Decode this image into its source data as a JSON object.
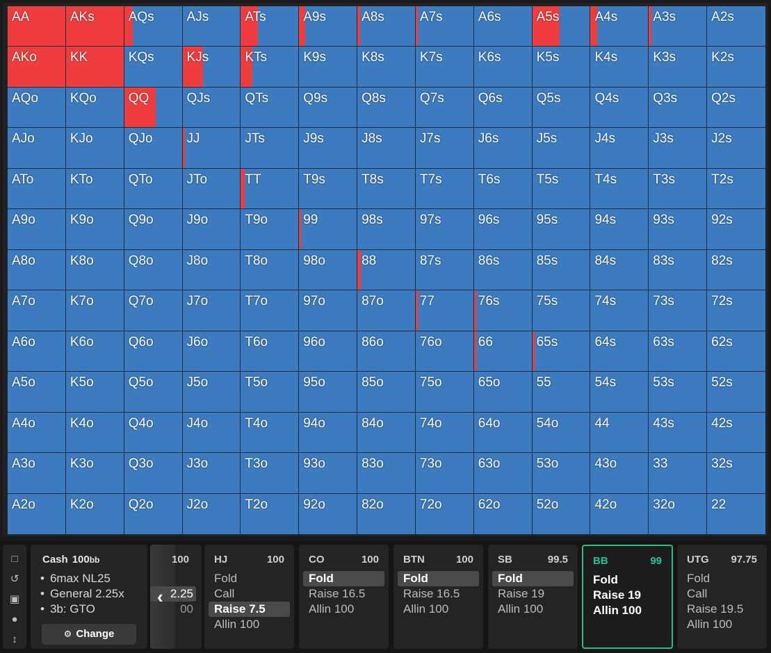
{
  "grid": {
    "rows": [
      [
        "AA",
        "AKs",
        "AQs",
        "AJs",
        "ATs",
        "A9s",
        "A8s",
        "A7s",
        "A6s",
        "A5s",
        "A4s",
        "A3s",
        "A2s"
      ],
      [
        "AKo",
        "KK",
        "KQs",
        "KJs",
        "KTs",
        "K9s",
        "K8s",
        "K7s",
        "K6s",
        "K5s",
        "K4s",
        "K3s",
        "K2s"
      ],
      [
        "AQo",
        "KQo",
        "QQ",
        "QJs",
        "QTs",
        "Q9s",
        "Q8s",
        "Q7s",
        "Q6s",
        "Q5s",
        "Q4s",
        "Q3s",
        "Q2s"
      ],
      [
        "AJo",
        "KJo",
        "QJo",
        "JJ",
        "JTs",
        "J9s",
        "J8s",
        "J7s",
        "J6s",
        "J5s",
        "J4s",
        "J3s",
        "J2s"
      ],
      [
        "ATo",
        "KTo",
        "QTo",
        "JTo",
        "TT",
        "T9s",
        "T8s",
        "T7s",
        "T6s",
        "T5s",
        "T4s",
        "T3s",
        "T2s"
      ],
      [
        "A9o",
        "K9o",
        "Q9o",
        "J9o",
        "T9o",
        "99",
        "98s",
        "97s",
        "96s",
        "95s",
        "94s",
        "93s",
        "92s"
      ],
      [
        "A8o",
        "K8o",
        "Q8o",
        "J8o",
        "T8o",
        "98o",
        "88",
        "87s",
        "86s",
        "85s",
        "84s",
        "83s",
        "82s"
      ],
      [
        "A7o",
        "K7o",
        "Q7o",
        "J7o",
        "T7o",
        "97o",
        "87o",
        "77",
        "76s",
        "75s",
        "74s",
        "73s",
        "72s"
      ],
      [
        "A6o",
        "K6o",
        "Q6o",
        "J6o",
        "T6o",
        "96o",
        "86o",
        "76o",
        "66",
        "65s",
        "64s",
        "63s",
        "62s"
      ],
      [
        "A5o",
        "K5o",
        "Q5o",
        "J5o",
        "T5o",
        "95o",
        "85o",
        "75o",
        "65o",
        "55",
        "54s",
        "53s",
        "52s"
      ],
      [
        "A4o",
        "K4o",
        "Q4o",
        "J4o",
        "T4o",
        "94o",
        "84o",
        "74o",
        "64o",
        "54o",
        "44",
        "43s",
        "42s"
      ],
      [
        "A3o",
        "K3o",
        "Q3o",
        "J3o",
        "T3o",
        "93o",
        "83o",
        "73o",
        "63o",
        "53o",
        "43o",
        "33",
        "32s"
      ],
      [
        "A2o",
        "K2o",
        "Q2o",
        "J2o",
        "T2o",
        "92o",
        "82o",
        "72o",
        "62o",
        "52o",
        "42o",
        "32o",
        "22"
      ]
    ],
    "raise_fraction": {
      "AA": 1.0,
      "AKs": 1.0,
      "AQs": 0.15,
      "ATs": 0.3,
      "A9s": 0.1,
      "A8s": 0.05,
      "A7s": 0.03,
      "A5s": 0.48,
      "A4s": 0.11,
      "A3s": 0.04,
      "AKo": 1.0,
      "KK": 1.0,
      "KJs": 0.36,
      "KTs": 0.2,
      "QQ": 0.55,
      "JJ": 0.02,
      "TT": 0.07,
      "99": 0.02,
      "88": 0.06,
      "77": 0.02,
      "76s": 0.02,
      "66": 0.03,
      "65s": 0.01
    },
    "colors": {
      "raise": "#f03c3c",
      "fold": "#3c7bbf"
    }
  },
  "sidebar": {
    "icons": [
      "bookmark-icon",
      "history-icon",
      "save-icon",
      "gamepad-icon",
      "expand-vertical-icon"
    ]
  },
  "info": {
    "game": "Cash",
    "stack": "100",
    "stack_unit": "bb",
    "lines": [
      "6max NL25",
      "General 2.25x",
      "3b: GTO"
    ],
    "change_label": "Change"
  },
  "prev_position": {
    "stack": "100",
    "actions": [
      {
        "label": "",
        "selected": false
      },
      {
        "label": "2.25",
        "selected": true
      },
      {
        "label": "00",
        "selected": false
      }
    ]
  },
  "positions": [
    {
      "name": "HJ",
      "stack": "100",
      "active": false,
      "actions": [
        {
          "label": "Fold",
          "selected": false
        },
        {
          "label": "Call",
          "selected": false
        },
        {
          "label": "Raise 7.5",
          "selected": true
        },
        {
          "label": "Allin 100",
          "selected": false
        }
      ]
    },
    {
      "name": "CO",
      "stack": "100",
      "active": false,
      "actions": [
        {
          "label": "Fold",
          "selected": true
        },
        {
          "label": "Raise 16.5",
          "selected": false
        },
        {
          "label": "Allin 100",
          "selected": false
        }
      ]
    },
    {
      "name": "BTN",
      "stack": "100",
      "active": false,
      "actions": [
        {
          "label": "Fold",
          "selected": true
        },
        {
          "label": "Raise 16.5",
          "selected": false
        },
        {
          "label": "Allin 100",
          "selected": false
        }
      ]
    },
    {
      "name": "SB",
      "stack": "99.5",
      "active": false,
      "actions": [
        {
          "label": "Fold",
          "selected": true
        },
        {
          "label": "Raise 19",
          "selected": false
        },
        {
          "label": "Allin 100",
          "selected": false
        }
      ]
    },
    {
      "name": "BB",
      "stack": "99",
      "active": true,
      "actions": [
        {
          "label": "Fold",
          "selected": false
        },
        {
          "label": "Raise 19",
          "selected": false
        },
        {
          "label": "Allin 100",
          "selected": false
        }
      ]
    },
    {
      "name": "UTG",
      "stack": "97.75",
      "active": false,
      "actions": [
        {
          "label": "Fold",
          "selected": false
        },
        {
          "label": "Call",
          "selected": false
        },
        {
          "label": "Raise 19.5",
          "selected": false
        },
        {
          "label": "Allin 100",
          "selected": false
        }
      ]
    }
  ]
}
